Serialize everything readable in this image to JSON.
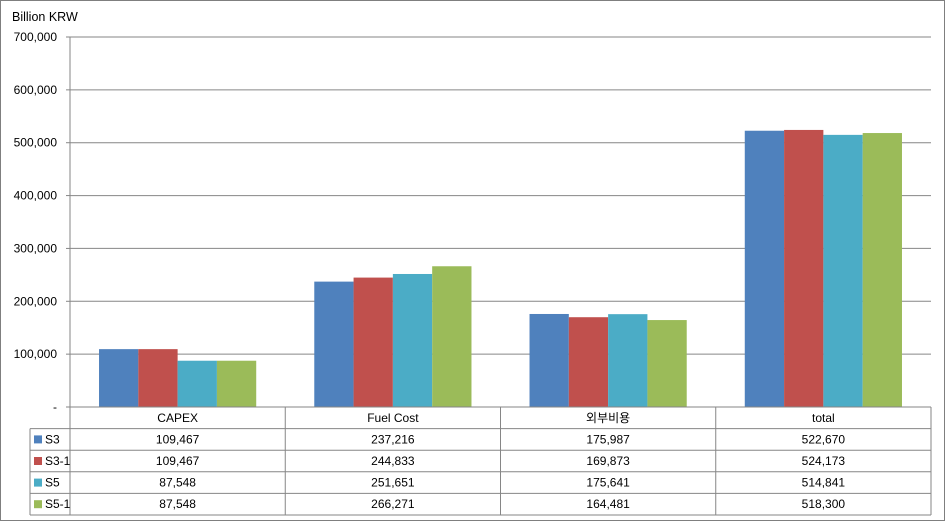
{
  "chart_data": {
    "type": "bar",
    "ylabel": "Billion KRW",
    "ylim": [
      0,
      700000
    ],
    "ytick_step": 100000,
    "ytick_labels": [
      "-",
      "100,000",
      "200,000",
      "300,000",
      "400,000",
      "500,000",
      "600,000",
      "700,000"
    ],
    "grid": true,
    "legend": "data-table",
    "categories": [
      "CAPEX",
      "Fuel Cost",
      "외부비용",
      "total"
    ],
    "series": [
      {
        "name": "S3",
        "color": "#4f81bd",
        "values": [
          109467,
          237216,
          175987,
          522670
        ],
        "labels": [
          "109,467",
          "237,216",
          "175,987",
          "522,670"
        ]
      },
      {
        "name": "S3-1",
        "color": "#c0504d",
        "values": [
          109467,
          244833,
          169873,
          524173
        ],
        "labels": [
          "109,467",
          "244,833",
          "169,873",
          "524,173"
        ]
      },
      {
        "name": "S5",
        "color": "#4bacc6",
        "values": [
          87548,
          251651,
          175641,
          514841
        ],
        "labels": [
          "87,548",
          "251,651",
          "175,641",
          "514,841"
        ]
      },
      {
        "name": "S5-1",
        "color": "#9bbb59",
        "values": [
          87548,
          266271,
          164481,
          518300
        ],
        "labels": [
          "87,548",
          "266,271",
          "164,481",
          "518,300"
        ]
      }
    ]
  }
}
